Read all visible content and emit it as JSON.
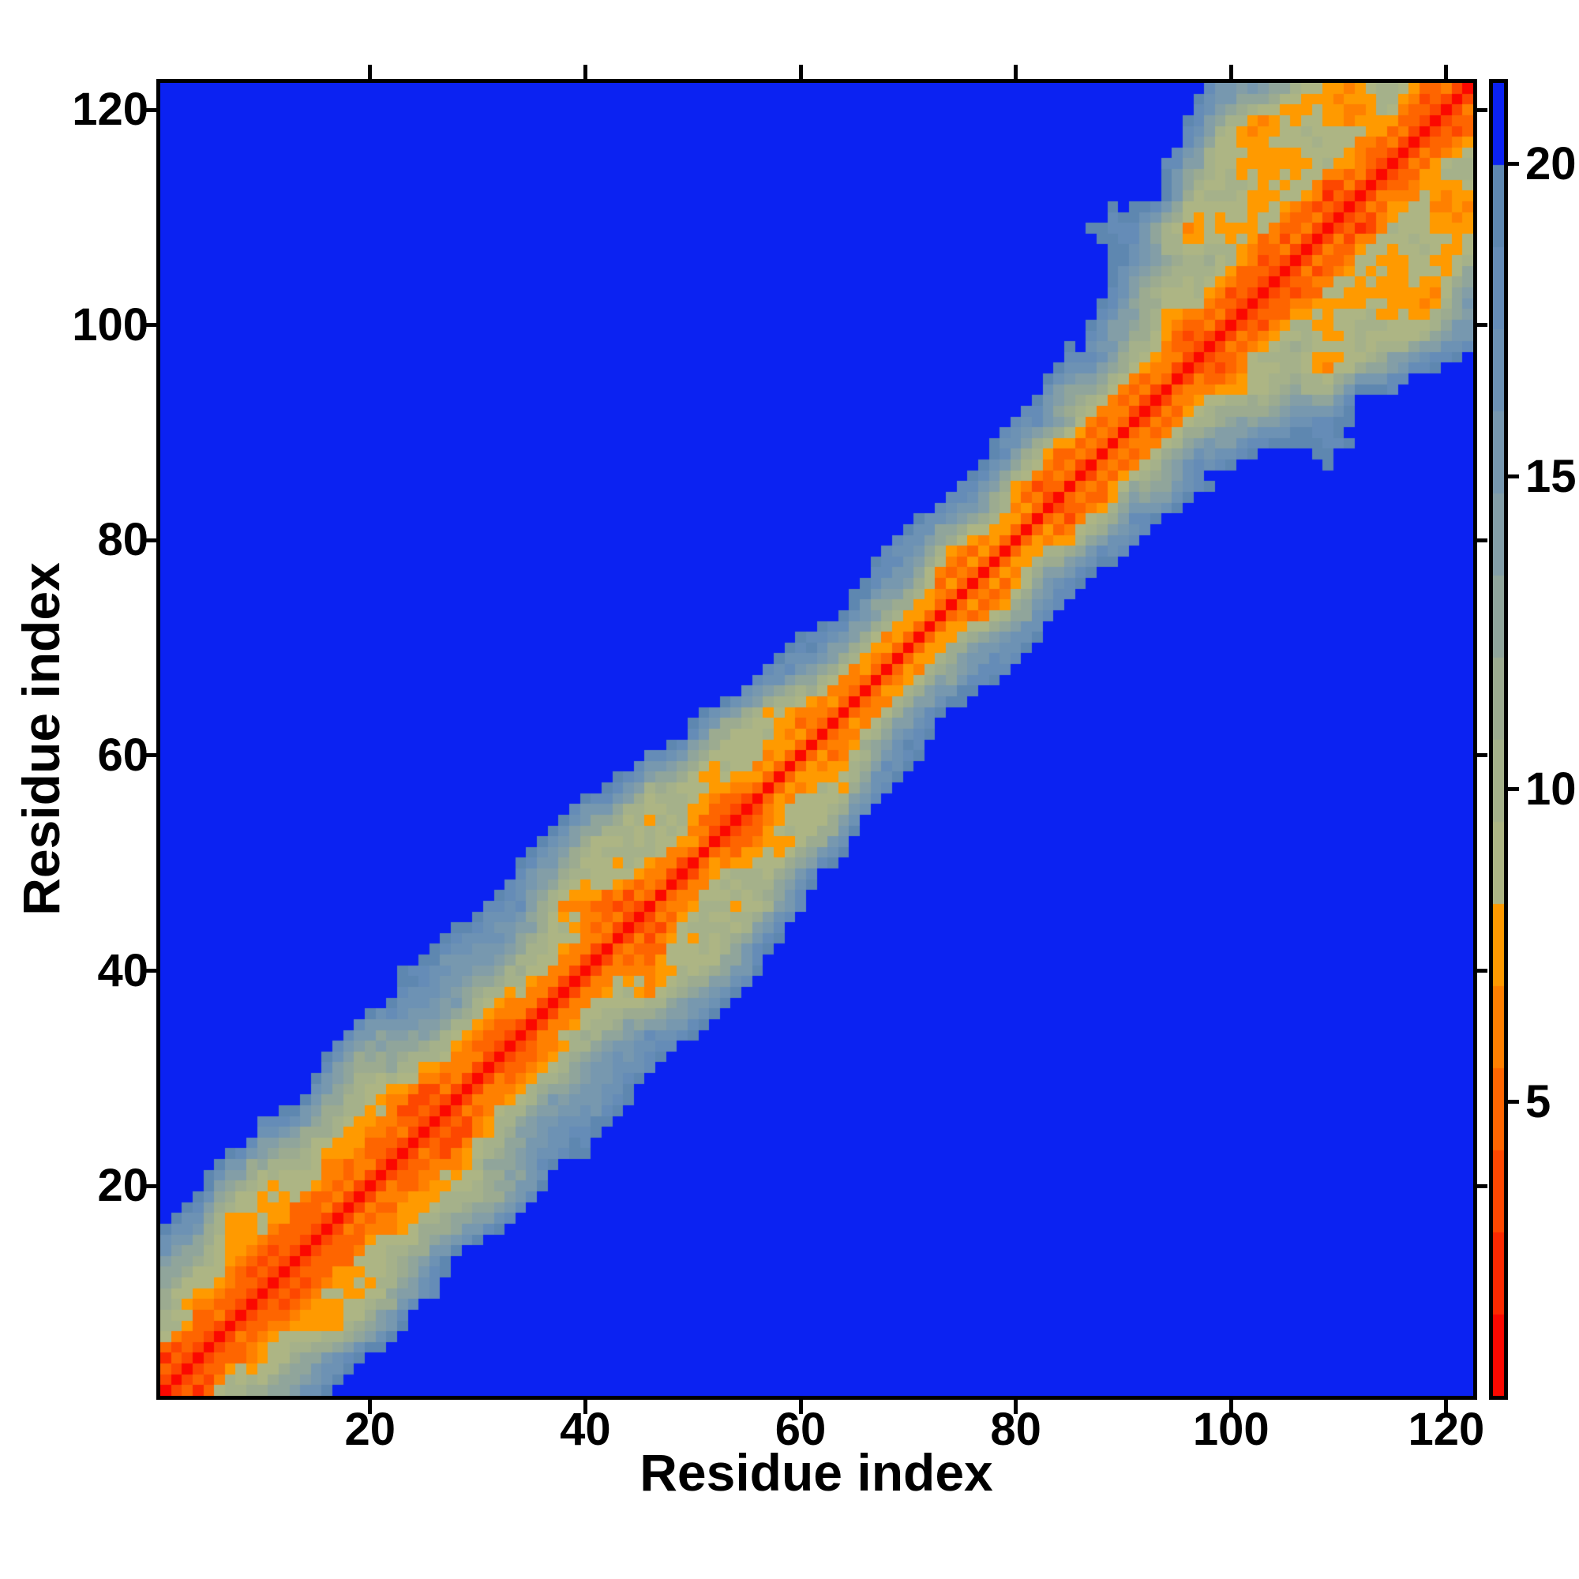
{
  "figure": {
    "background": "#ffffff",
    "frame_color": "#000000"
  },
  "axes": {
    "x_label": "Residue index",
    "y_label": "Residue index",
    "x_ticks": [
      20,
      40,
      60,
      80,
      100,
      120
    ],
    "y_ticks": [
      20,
      40,
      60,
      80,
      100,
      120
    ],
    "x_range": [
      0.5,
      122.5
    ],
    "y_range": [
      0.5,
      122.5
    ],
    "tick_color": "#000000",
    "mirrored_ticks": true
  },
  "colorbar": {
    "ticks": [
      5,
      10,
      15,
      20
    ],
    "orientation": "vertical",
    "position": "right"
  },
  "chart_data": {
    "type": "heatmap",
    "title": "",
    "xlabel": "Residue index",
    "ylabel": "Residue index",
    "n_residues": 122,
    "x_domain": [
      1,
      122
    ],
    "y_domain": [
      1,
      122
    ],
    "value_kind": "inter-residue distance",
    "colorbar_ticks": [
      5,
      10,
      15,
      20
    ],
    "legend_position": "right-colorbar",
    "grid": false,
    "background_value_color": "#0b22f2",
    "colormap": {
      "bins": 16,
      "vmin": 0.3,
      "vmax": 21.3,
      "colors": [
        "#fb0800",
        "#fc2900",
        "#fd4700",
        "#fe6500",
        "#ff8000",
        "#ff9a00",
        "#adb584",
        "#a5b18a",
        "#9cab90",
        "#90a59b",
        "#839ea7",
        "#7798af",
        "#6d92b4",
        "#658cb7",
        "#5e87b0",
        "#0b22f2"
      ]
    },
    "matrix_model": {
      "description": "Symmetric 122x122 distance matrix: red diagonal core, orange helical checker |i-j|<6, sage/steel band to ~|i-j|=14 (narrower mid-sequence), off-diagonal contact clusters (largest around residues 95-122), speckle noise at band edges.",
      "helix_profile": [
        0,
        3.8,
        5.6,
        5.0,
        6.4,
        7.6,
        9.6,
        10.4,
        12.0,
        13.6,
        14.5,
        15.8,
        17.4,
        18.5,
        19.6,
        21.0
      ],
      "tail_slope": 1.35,
      "mid_narrowing": {
        "center": 72,
        "sigma": 13,
        "amp": 0.28
      },
      "cluster_floor": 8.45,
      "clusters": [
        {
          "u": 14,
          "w": 10,
          "a": 5.0,
          "su": 8.0,
          "sw": 4.0
        },
        {
          "u": 27,
          "w": 14,
          "a": 4.5,
          "su": 3.0,
          "sw": 3.0
        },
        {
          "u": 35,
          "w": 15,
          "a": 3.5,
          "su": 2.5,
          "sw": 2.5
        },
        {
          "u": 47,
          "w": 10,
          "a": 6.5,
          "su": 5.0,
          "sw": 3.5
        },
        {
          "u": 44,
          "w": 16,
          "a": 4.0,
          "su": 3.0,
          "sw": 3.0
        },
        {
          "u": 58,
          "w": 8,
          "a": 3.5,
          "su": 3.0,
          "sw": 2.5
        },
        {
          "u": 104,
          "w": 13,
          "a": 9.0,
          "su": 5.0,
          "sw": 4.5
        },
        {
          "u": 109,
          "w": 20,
          "a": 13.0,
          "su": 3.5,
          "sw": 7.0
        },
        {
          "u": 117,
          "w": 13,
          "a": 8.0,
          "su": 4.0,
          "sw": 5.0
        },
        {
          "u": 99,
          "w": 23,
          "a": 13.0,
          "su": 2.5,
          "sw": 3.5
        },
        {
          "u": 113,
          "w": 27,
          "a": 11.0,
          "su": 2.5,
          "sw": 4.0
        }
      ],
      "noise": {
        "seed": 7,
        "scale": 3,
        "amp": 2.4,
        "jitter": 0.9
      }
    }
  }
}
